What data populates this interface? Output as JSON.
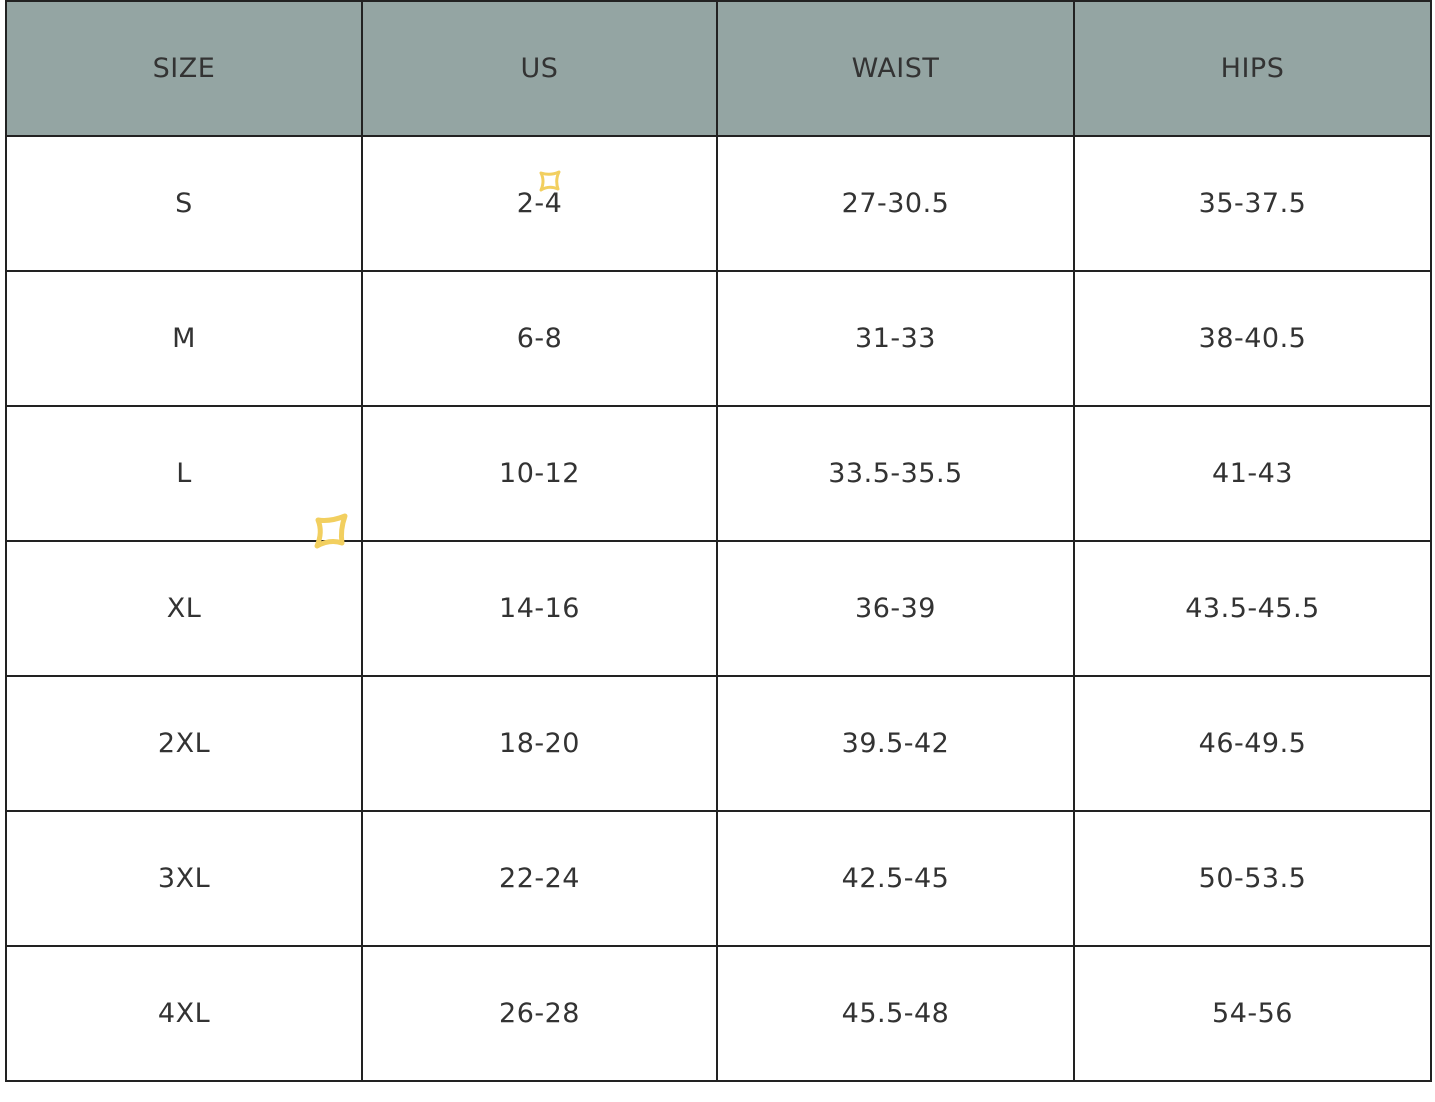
{
  "table": {
    "headers": [
      "SIZE",
      "US",
      "WAIST",
      "HIPS"
    ],
    "rows": [
      [
        "S",
        "2-4",
        "27-30.5",
        "35-37.5"
      ],
      [
        "M",
        "6-8",
        "31-33",
        "38-40.5"
      ],
      [
        "L",
        "10-12",
        "33.5-35.5",
        "41-43"
      ],
      [
        "XL",
        "14-16",
        "36-39",
        "43.5-45.5"
      ],
      [
        "2XL",
        "18-20",
        "39.5-42",
        "46-49.5"
      ],
      [
        "3XL",
        "22-24",
        "42.5-45",
        "50-53.5"
      ],
      [
        "4XL",
        "26-28",
        "45.5-48",
        "54-56"
      ]
    ]
  },
  "colors": {
    "header_bg": "#94a5a3",
    "text": "#333333",
    "sparkle": "#f2cf5f"
  },
  "icons": [
    "sparkle-icon",
    "sparkle-icon"
  ]
}
